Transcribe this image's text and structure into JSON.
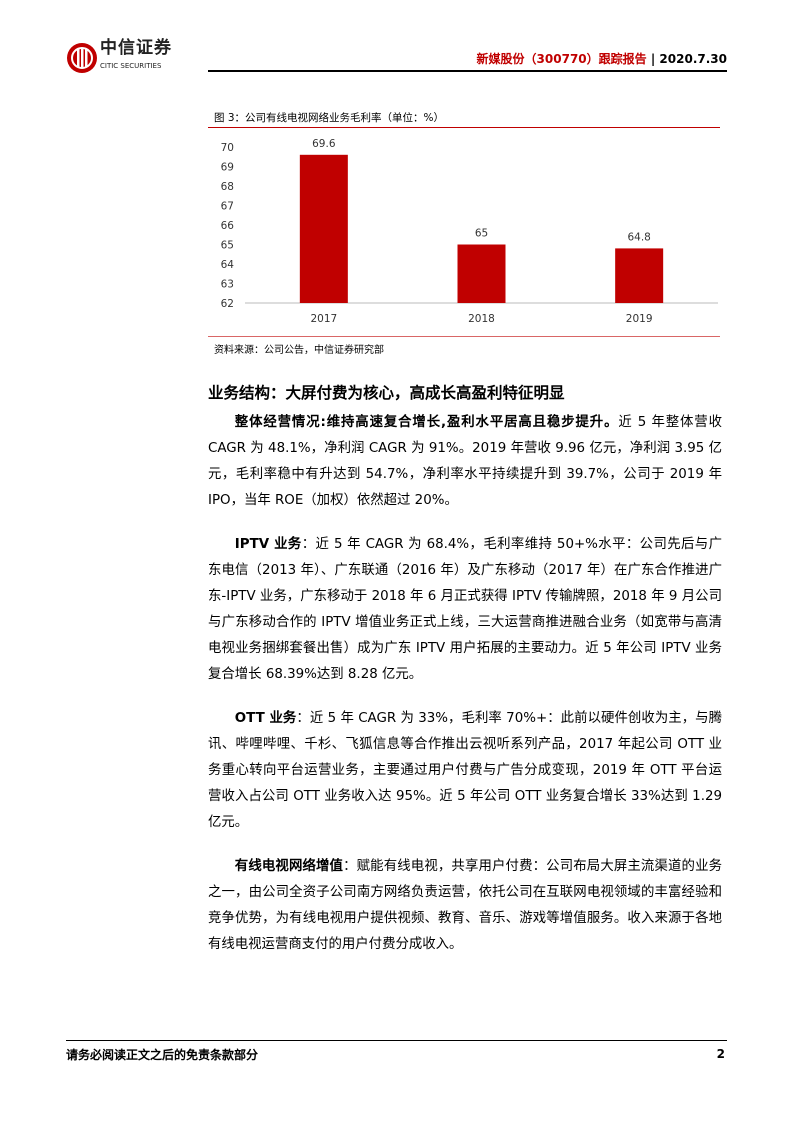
{
  "header": {
    "logo_cn": "中信证券",
    "logo_en": "CITIC SECURITIES",
    "report_title": "新媒股份（300770）跟踪报告",
    "separator": "|",
    "date": "2020.7.30"
  },
  "figure": {
    "title": "图 3：公司有线电视网络业务毛利率（单位：%）",
    "source": "资料来源：公司公告，中信证券研究部"
  },
  "chart_data": {
    "type": "bar",
    "categories": [
      "2017",
      "2018",
      "2019"
    ],
    "values": [
      69.6,
      65,
      64.8
    ],
    "data_labels": [
      "69.6",
      "65",
      "64.8"
    ],
    "ylim": [
      62,
      70
    ],
    "yticks": [
      "62",
      "63",
      "64",
      "65",
      "66",
      "67",
      "68",
      "69",
      "70"
    ],
    "grid": false,
    "bar_color": "#c00000",
    "title": "",
    "xlabel": "",
    "ylabel": ""
  },
  "section": {
    "title": "业务结构：大屏付费为核心，高成长高盈利特征明显"
  },
  "paragraphs": [
    {
      "lead": "整体经营情况:维持高速复合增长,盈利水平居高且稳步提升。",
      "body": "近 5 年整体营收 CAGR 为 48.1%，净利润 CAGR 为 91%。2019 年营收 9.96 亿元，净利润 3.95 亿元，毛利率稳中有升达到 54.7%，净利率水平持续提升到 39.7%，公司于 2019 年 IPO，当年 ROE（加权）依然超过 20%。"
    },
    {
      "lead": "IPTV 业务",
      "body": "：近 5 年 CAGR 为 68.4%，毛利率维持 50+%水平：公司先后与广东电信（2013 年）、广东联通（2016 年）及广东移动（2017 年）在广东合作推进广东-IPTV 业务，广东移动于 2018 年 6 月正式获得 IPTV 传输牌照，2018 年 9 月公司与广东移动合作的 IPTV 增值业务正式上线，三大运营商推进融合业务（如宽带与高清电视业务捆绑套餐出售）成为广东 IPTV 用户拓展的主要动力。近 5 年公司 IPTV 业务复合增长 68.39%达到 8.28 亿元。"
    },
    {
      "lead": "OTT 业务",
      "body": "：近 5 年 CAGR 为 33%，毛利率 70%+：此前以硬件创收为主，与腾讯、哔哩哔哩、千杉、飞狐信息等合作推出云视听系列产品，2017 年起公司 OTT 业务重心转向平台运营业务，主要通过用户付费与广告分成变现，2019 年 OTT 平台运营收入占公司 OTT 业务收入达 95%。近 5 年公司 OTT 业务复合增长 33%达到 1.29 亿元。"
    },
    {
      "lead": "有线电视网络增值",
      "body": "：赋能有线电视，共享用户付费：公司布局大屏主流渠道的业务之一，由公司全资子公司南方网络负责运营，依托公司在互联网电视领域的丰富经验和竞争优势，为有线电视用户提供视频、教育、音乐、游戏等增值服务。收入来源于各地有线电视运营商支付的用户付费分成收入。"
    }
  ],
  "footer": {
    "disclaimer": "请务必阅读正文之后的免责条款部分",
    "page": "2"
  }
}
